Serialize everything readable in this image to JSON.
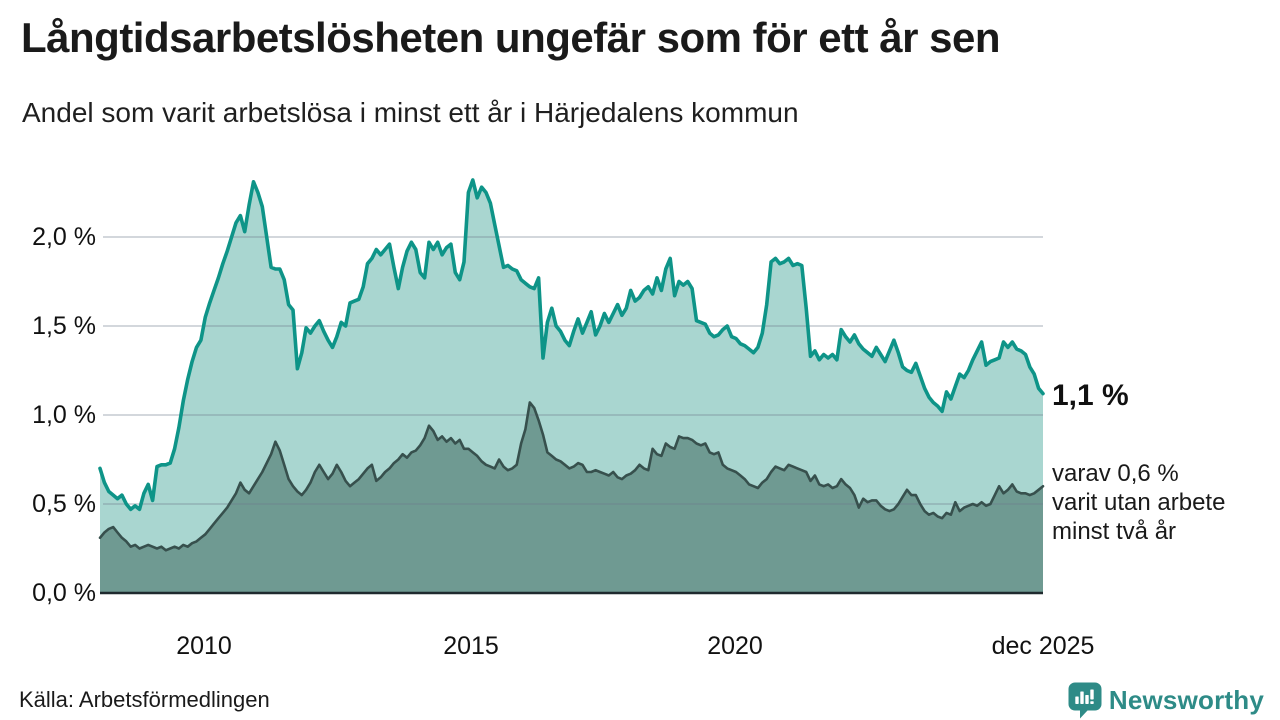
{
  "header": {
    "title": "Långtidsarbetslösheten ungefär som för ett år sen",
    "subtitle": "Andel som varit arbetslösa i minst ett år i Härjedalens kommun"
  },
  "chart": {
    "y_ticks": [
      "2,0 %",
      "1,5 %",
      "1,0 %",
      "0,5 %",
      "0,0 %"
    ],
    "x_ticks": [
      "2010",
      "2015",
      "2020",
      "dec 2025"
    ],
    "end_label_primary": "1,1 %",
    "end_label_secondary_lines": [
      "varav 0,6 %",
      "varit utan arbete",
      "minst två år"
    ],
    "colors": {
      "line_one_year": "#0e9488",
      "fill_one_year": "#a9d6d0",
      "line_two_years": "#37504d",
      "fill_two_years": "#6f9a92",
      "gridline": "rgba(110,122,138,0.30)",
      "axis": "#1f2a2e",
      "brand_teal": "#2e8b87"
    }
  },
  "footer": {
    "source": "Källa: Arbetsförmedlingen",
    "brand": "Newsworthy"
  },
  "chart_data": {
    "type": "area",
    "title": "Långtidsarbetslösheten ungefär som för ett år sen",
    "subtitle": "Andel som varit arbetslösa i minst ett år i Härjedalens kommun",
    "source": "Arbetsförmedlingen",
    "unit": "%",
    "frequency": "monthly",
    "x_range": [
      "2008-01",
      "2025-12"
    ],
    "x_tick_labels": [
      "2010",
      "2015",
      "2020",
      "dec 2025"
    ],
    "ylim": [
      0,
      2.4
    ],
    "y_gridlines": [
      0.0,
      0.5,
      1.0,
      1.5,
      2.0
    ],
    "legend_position": "right-annotations",
    "grid": true,
    "series": [
      {
        "name": "Andel arbetslösa minst ett år",
        "latest_label": "1,1 %",
        "latest_value": 1.1,
        "values": [
          0.7,
          0.62,
          0.57,
          0.55,
          0.53,
          0.55,
          0.5,
          0.47,
          0.49,
          0.47,
          0.56,
          0.61,
          0.52,
          0.71,
          0.72,
          0.72,
          0.73,
          0.81,
          0.93,
          1.08,
          1.2,
          1.3,
          1.38,
          1.42,
          1.55,
          1.63,
          1.7,
          1.77,
          1.85,
          1.92,
          2.0,
          2.08,
          2.12,
          2.03,
          2.18,
          2.31,
          2.25,
          2.17,
          2.0,
          1.83,
          1.82,
          1.82,
          1.76,
          1.62,
          1.59,
          1.26,
          1.35,
          1.49,
          1.46,
          1.5,
          1.53,
          1.47,
          1.42,
          1.38,
          1.44,
          1.52,
          1.5,
          1.63,
          1.64,
          1.65,
          1.72,
          1.85,
          1.88,
          1.93,
          1.9,
          1.93,
          1.96,
          1.83,
          1.71,
          1.83,
          1.92,
          1.97,
          1.93,
          1.8,
          1.77,
          1.97,
          1.93,
          1.97,
          1.9,
          1.94,
          1.96,
          1.8,
          1.76,
          1.86,
          2.25,
          2.32,
          2.22,
          2.28,
          2.25,
          2.19,
          2.07,
          1.95,
          1.83,
          1.84,
          1.82,
          1.81,
          1.76,
          1.74,
          1.72,
          1.71,
          1.77,
          1.32,
          1.52,
          1.6,
          1.5,
          1.47,
          1.42,
          1.39,
          1.47,
          1.54,
          1.46,
          1.52,
          1.58,
          1.45,
          1.5,
          1.57,
          1.52,
          1.57,
          1.62,
          1.56,
          1.6,
          1.7,
          1.64,
          1.66,
          1.7,
          1.72,
          1.68,
          1.77,
          1.7,
          1.82,
          1.88,
          1.67,
          1.75,
          1.73,
          1.75,
          1.71,
          1.53,
          1.52,
          1.51,
          1.46,
          1.44,
          1.45,
          1.48,
          1.5,
          1.44,
          1.43,
          1.4,
          1.39,
          1.37,
          1.35,
          1.38,
          1.46,
          1.62,
          1.86,
          1.88,
          1.85,
          1.86,
          1.88,
          1.84,
          1.85,
          1.84,
          1.6,
          1.33,
          1.36,
          1.31,
          1.34,
          1.32,
          1.34,
          1.31,
          1.48,
          1.44,
          1.41,
          1.45,
          1.4,
          1.37,
          1.35,
          1.33,
          1.38,
          1.34,
          1.3,
          1.36,
          1.42,
          1.35,
          1.27,
          1.25,
          1.24,
          1.29,
          1.22,
          1.15,
          1.1,
          1.07,
          1.05,
          1.02,
          1.13,
          1.09,
          1.16,
          1.23,
          1.21,
          1.25,
          1.31,
          1.36,
          1.41,
          1.28,
          1.3,
          1.31,
          1.32,
          1.41,
          1.38,
          1.41,
          1.37,
          1.36,
          1.34,
          1.27,
          1.23,
          1.15,
          1.12
        ]
      },
      {
        "name": "varav utan arbete minst två år",
        "latest_label": "0,6 %",
        "latest_value": 0.6,
        "values": [
          0.31,
          0.34,
          0.36,
          0.37,
          0.34,
          0.31,
          0.29,
          0.26,
          0.27,
          0.25,
          0.26,
          0.27,
          0.26,
          0.25,
          0.26,
          0.24,
          0.25,
          0.26,
          0.25,
          0.27,
          0.26,
          0.28,
          0.29,
          0.31,
          0.33,
          0.36,
          0.39,
          0.42,
          0.45,
          0.48,
          0.52,
          0.56,
          0.62,
          0.58,
          0.56,
          0.6,
          0.64,
          0.68,
          0.73,
          0.78,
          0.85,
          0.8,
          0.72,
          0.64,
          0.6,
          0.57,
          0.55,
          0.58,
          0.62,
          0.68,
          0.72,
          0.68,
          0.64,
          0.67,
          0.72,
          0.68,
          0.63,
          0.6,
          0.62,
          0.64,
          0.67,
          0.7,
          0.72,
          0.63,
          0.65,
          0.68,
          0.7,
          0.73,
          0.75,
          0.78,
          0.76,
          0.79,
          0.8,
          0.83,
          0.87,
          0.94,
          0.91,
          0.86,
          0.88,
          0.85,
          0.87,
          0.84,
          0.86,
          0.81,
          0.81,
          0.79,
          0.77,
          0.74,
          0.72,
          0.71,
          0.7,
          0.75,
          0.71,
          0.69,
          0.7,
          0.72,
          0.84,
          0.92,
          1.07,
          1.04,
          0.97,
          0.89,
          0.79,
          0.77,
          0.75,
          0.74,
          0.72,
          0.7,
          0.71,
          0.73,
          0.72,
          0.68,
          0.68,
          0.69,
          0.68,
          0.67,
          0.66,
          0.68,
          0.65,
          0.64,
          0.66,
          0.67,
          0.69,
          0.72,
          0.7,
          0.69,
          0.81,
          0.78,
          0.77,
          0.84,
          0.82,
          0.81,
          0.88,
          0.87,
          0.87,
          0.86,
          0.84,
          0.83,
          0.84,
          0.79,
          0.78,
          0.79,
          0.72,
          0.7,
          0.69,
          0.68,
          0.66,
          0.64,
          0.61,
          0.6,
          0.59,
          0.62,
          0.64,
          0.68,
          0.71,
          0.7,
          0.69,
          0.72,
          0.71,
          0.7,
          0.69,
          0.68,
          0.63,
          0.66,
          0.61,
          0.6,
          0.61,
          0.59,
          0.6,
          0.64,
          0.61,
          0.59,
          0.55,
          0.48,
          0.53,
          0.51,
          0.52,
          0.52,
          0.49,
          0.47,
          0.46,
          0.47,
          0.5,
          0.54,
          0.58,
          0.55,
          0.55,
          0.5,
          0.46,
          0.44,
          0.45,
          0.43,
          0.42,
          0.45,
          0.44,
          0.51,
          0.46,
          0.48,
          0.49,
          0.5,
          0.49,
          0.51,
          0.49,
          0.5,
          0.55,
          0.6,
          0.56,
          0.58,
          0.61,
          0.57,
          0.56,
          0.56,
          0.55,
          0.56,
          0.58,
          0.6
        ]
      }
    ]
  }
}
